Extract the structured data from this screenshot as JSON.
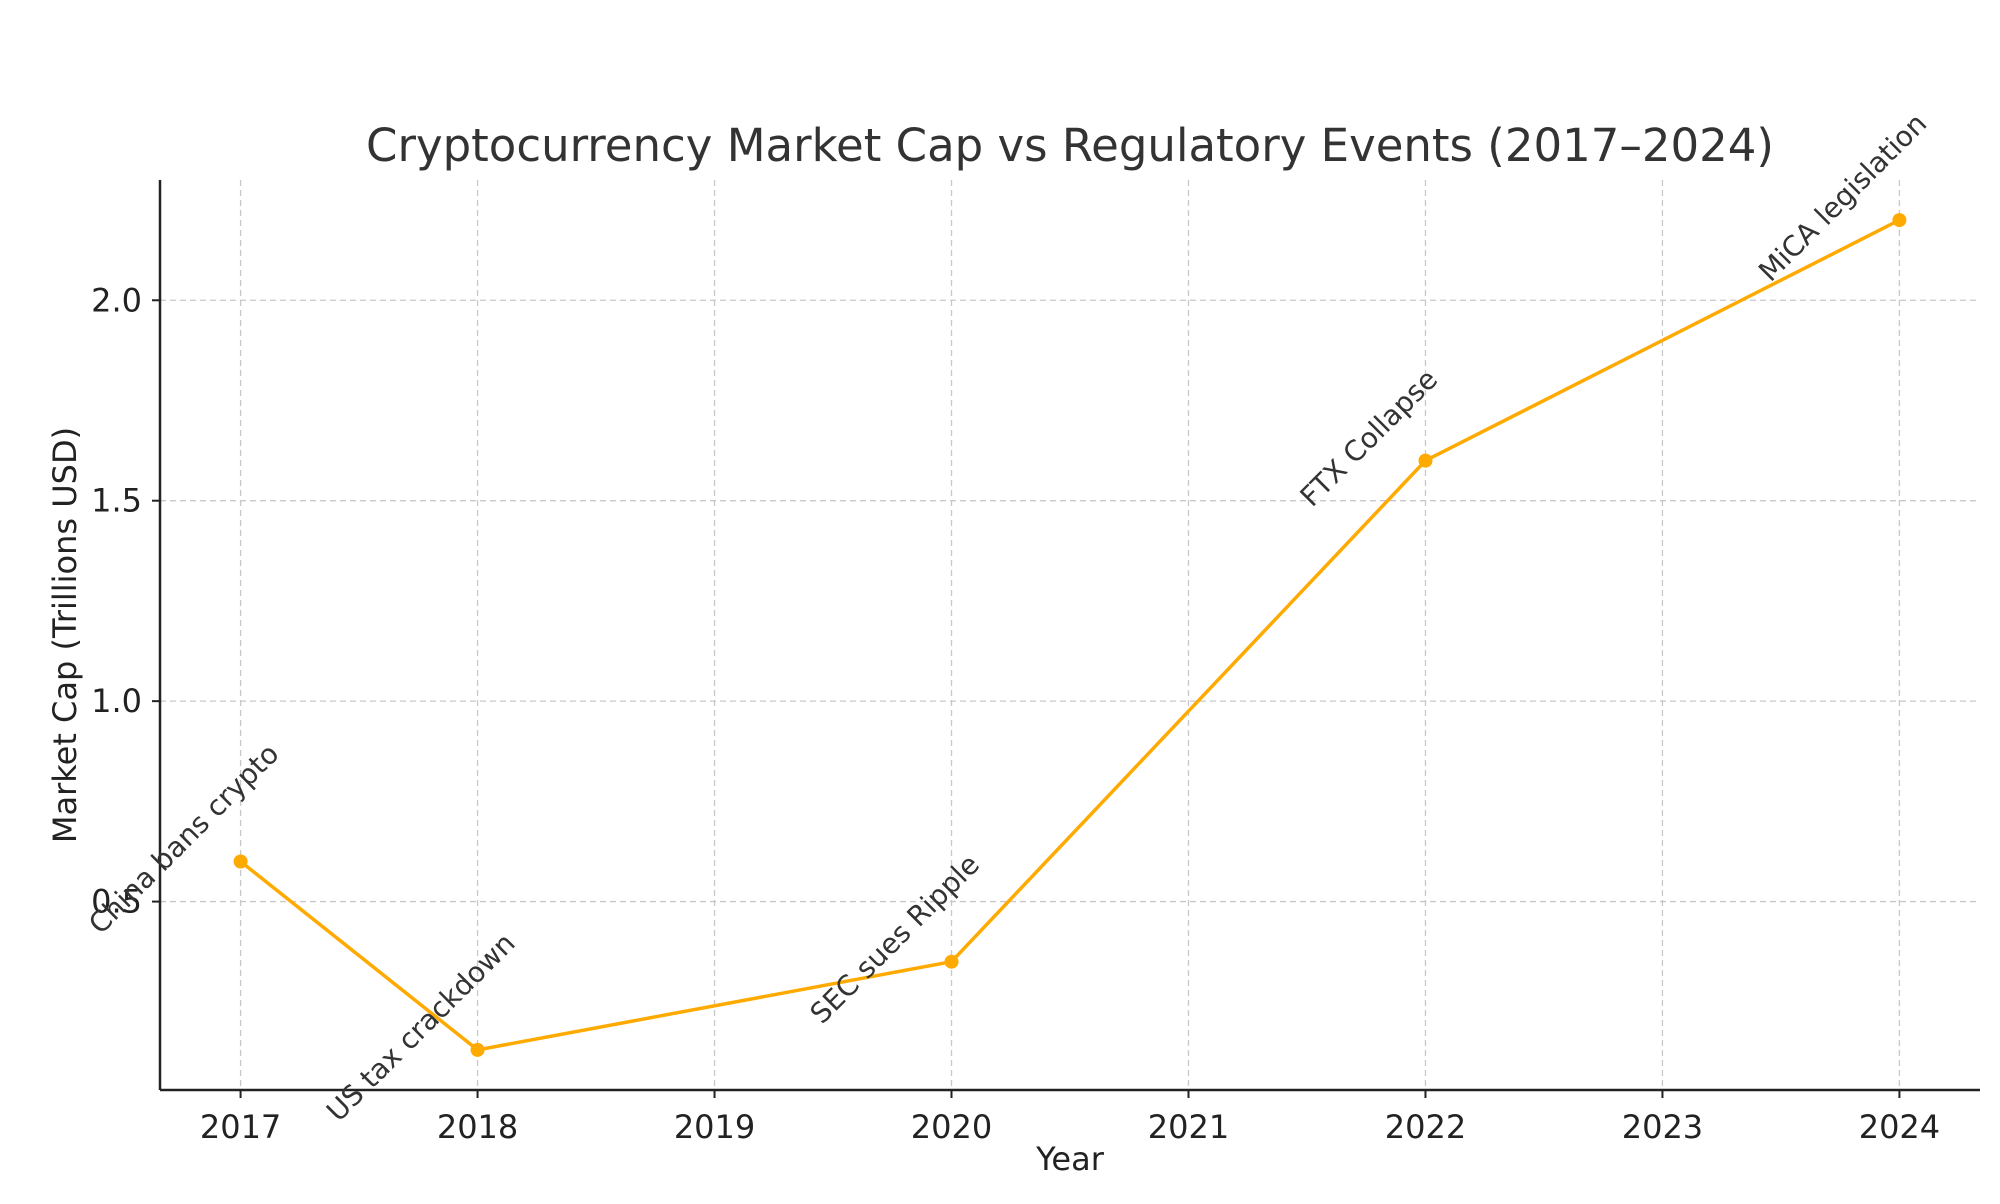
{
  "chart_data": {
    "type": "line",
    "title": "Cryptocurrency Market Cap vs Regulatory Events (2017–2024)",
    "xlabel": "Year",
    "ylabel": "Market Cap (Trillions USD)",
    "x_ticks": [
      "2017",
      "2018",
      "2019",
      "2020",
      "2021",
      "2022",
      "2023",
      "2024"
    ],
    "y_ticks": [
      "0.5",
      "1.0",
      "1.5",
      "2.0"
    ],
    "xlim": [
      2016.66,
      2024.34
    ],
    "ylim": [
      0.03,
      2.3
    ],
    "grid": true,
    "series": [
      {
        "color": "#ffaa00",
        "points": [
          {
            "x": 2017,
            "y": 0.6
          },
          {
            "x": 2018,
            "y": 0.13
          },
          {
            "x": 2020,
            "y": 0.35
          },
          {
            "x": 2022,
            "y": 1.6
          },
          {
            "x": 2024,
            "y": 2.2
          }
        ]
      }
    ],
    "annotations": [
      {
        "x": 2017,
        "y": 0.6,
        "text": "China bans crypto"
      },
      {
        "x": 2018,
        "y": 0.13,
        "text": "US tax crackdown"
      },
      {
        "x": 2020,
        "y": 0.35,
        "text": "SEC sues Ripple"
      },
      {
        "x": 2022,
        "y": 1.6,
        "text": "FTX Collapse"
      },
      {
        "x": 2024,
        "y": 2.2,
        "text": "MiCA legislation"
      }
    ]
  }
}
